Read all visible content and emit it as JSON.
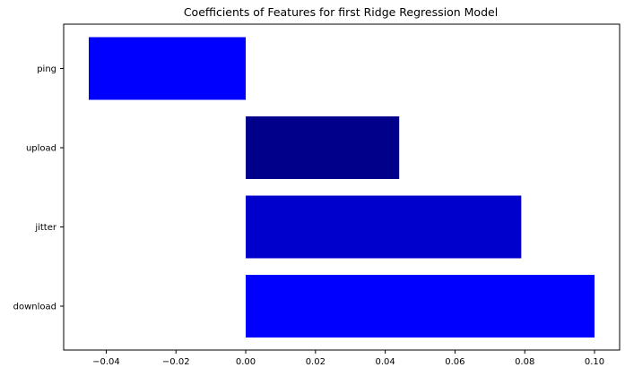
{
  "chart_data": {
    "type": "bar",
    "orientation": "horizontal",
    "title": "Coefficients of Features for first Ridge Regression Model",
    "xlabel": "",
    "ylabel": "",
    "categories": [
      "download",
      "jitter",
      "upload",
      "ping"
    ],
    "values": [
      0.1,
      0.079,
      0.044,
      -0.045
    ],
    "bar_colors": [
      "#0000ff",
      "#0000cd",
      "#00008b",
      "#0000ff"
    ],
    "xlim": [
      -0.0522,
      0.1072
    ],
    "xticks": [
      -0.04,
      -0.02,
      0.0,
      0.02,
      0.04,
      0.06,
      0.08,
      0.1
    ],
    "xtick_labels": [
      "−0.04",
      "−0.02",
      "0.00",
      "0.02",
      "0.04",
      "0.06",
      "0.08",
      "0.10"
    ],
    "grid": false,
    "legend": "none"
  }
}
